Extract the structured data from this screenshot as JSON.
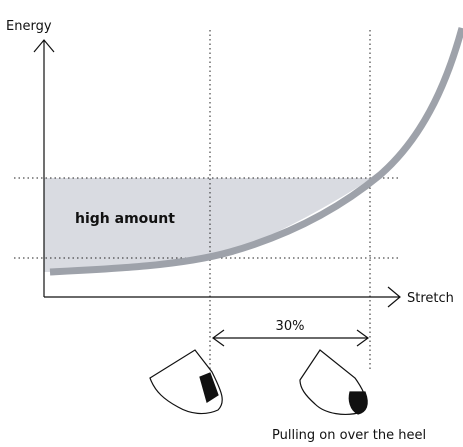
{
  "axes": {
    "y_label": "Energy",
    "x_label": "Stretch"
  },
  "region_label": "high amount",
  "span_label": "30%",
  "caption": "Pulling on over the heel"
}
